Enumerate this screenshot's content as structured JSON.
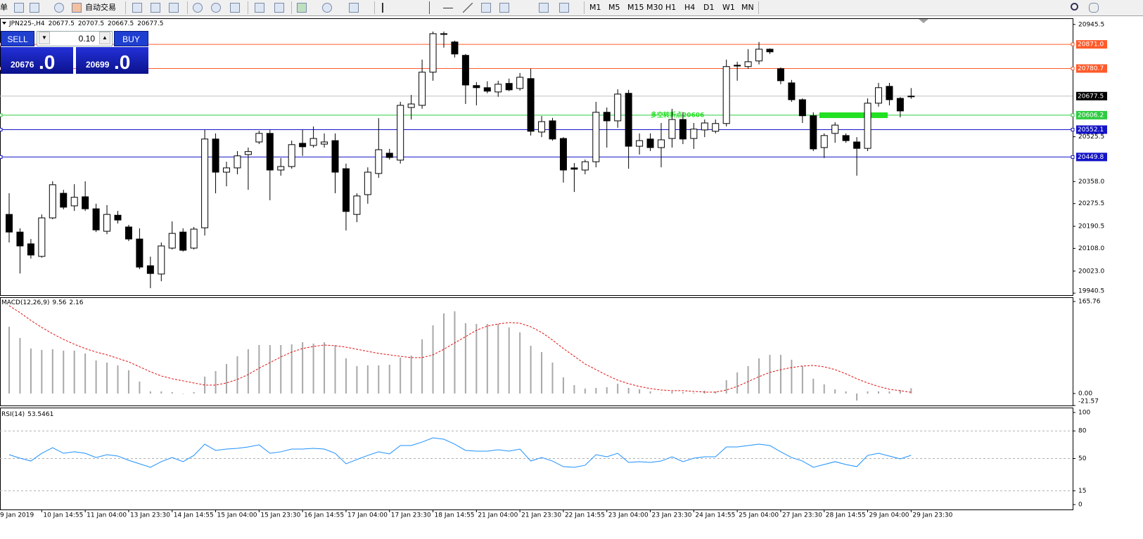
{
  "toolbar": {
    "items": [
      "单",
      "自动交易"
    ],
    "timeframes": [
      "M1",
      "M5",
      "M15",
      "M30",
      "H1",
      "H4",
      "D1",
      "W1",
      "MN"
    ]
  },
  "trade_panel": {
    "sell": "SELL",
    "lot": "0.10",
    "buy": "BUY",
    "bid_main": "20676",
    "bid_frac": ".0",
    "ask_main": "20699",
    "ask_frac": ".0"
  },
  "chart_data": [
    {
      "type": "candlestick",
      "symbol": "JPN225-,H4",
      "first_date_label": "9 Jan 2019",
      "categories": [
        null,
        null,
        null,
        "10 Jan 14:55",
        null,
        null,
        null,
        "11 Jan 04:00",
        null,
        null,
        null,
        "13 Jan 23:30",
        null,
        null,
        null,
        "14 Jan 14:55",
        null,
        null,
        null,
        "15 Jan 04:00",
        null,
        null,
        null,
        "15 Jan 23:30",
        null,
        null,
        null,
        "16 Jan 14:55",
        null,
        null,
        null,
        "17 Jan 04:00",
        null,
        null,
        null,
        "17 Jan 23:30",
        null,
        null,
        null,
        "18 Jan 14:55",
        null,
        null,
        null,
        "21 Jan 04:00",
        null,
        null,
        null,
        "21 Jan 23:30",
        null,
        null,
        null,
        "22 Jan 14:55",
        null,
        null,
        null,
        "23 Jan 04:00",
        null,
        null,
        null,
        "23 Jan 23:30",
        null,
        null,
        null,
        "24 Jan 14:55",
        null,
        null,
        null,
        "25 Jan 04:00",
        null,
        null,
        null,
        "27 Jan 23:30",
        null,
        null,
        null,
        "28 Jan 14:55",
        null,
        null,
        null,
        "29 Jan 04:00",
        null,
        null,
        null,
        "29 Jan 23:30"
      ],
      "open": [
        20235,
        20169,
        20125,
        20078,
        20222,
        20314,
        20267,
        20301,
        20256,
        20172,
        20232,
        20188,
        20143,
        20043,
        20012,
        20109,
        20169,
        20109,
        20185,
        20517,
        20393,
        20409,
        20459,
        20506,
        20538,
        20401,
        20414,
        20501,
        20493,
        20498,
        20511,
        20406,
        20235,
        20309,
        20388,
        20464,
        20438,
        20635,
        20643,
        20767,
        20909,
        20880,
        20830,
        20717,
        20709,
        20693,
        20725,
        20706,
        20743,
        20543,
        20585,
        20519,
        20409,
        20401,
        20432,
        20617,
        20585,
        20688,
        20490,
        20517,
        20485,
        20519,
        20590,
        20519,
        20551,
        20546,
        20575,
        20793,
        20788,
        20809,
        20853,
        20780,
        20727,
        20664,
        20604,
        20485,
        20538,
        20530,
        20506,
        20482,
        20651,
        20714,
        20669,
        20677.5
      ],
      "high": [
        20314,
        20183,
        20143,
        20235,
        20359,
        20327,
        20348,
        20359,
        20275,
        20270,
        20248,
        20196,
        20183,
        20077,
        20130,
        20209,
        20183,
        20188,
        20551,
        20538,
        20432,
        20472,
        20485,
        20548,
        20551,
        20446,
        20511,
        20551,
        20564,
        20538,
        20538,
        20425,
        20314,
        20411,
        20595,
        20480,
        20656,
        20682,
        20814,
        20919,
        20919,
        20885,
        20835,
        20730,
        20733,
        20735,
        20743,
        20764,
        20780,
        20603,
        20596,
        20524,
        20427,
        20440,
        20656,
        20635,
        20703,
        20701,
        20538,
        20538,
        20577,
        20630,
        20617,
        20577,
        20590,
        20590,
        20814,
        20806,
        20853,
        20880,
        20856,
        20785,
        20738,
        20669,
        20617,
        20538,
        20580,
        20538,
        20524,
        20669,
        20727,
        20727,
        20674,
        20707.5
      ],
      "low": [
        20130,
        20014,
        20070,
        20073,
        20217,
        20254,
        20248,
        20248,
        20169,
        20161,
        20201,
        20135,
        20030,
        19959,
        19985,
        20104,
        20096,
        20104,
        20156,
        20314,
        20340,
        20385,
        20327,
        20498,
        20288,
        20380,
        20406,
        20454,
        20485,
        20485,
        20314,
        20175,
        20206,
        20275,
        20372,
        20440,
        20425,
        20590,
        20630,
        20735,
        20859,
        20822,
        20648,
        20643,
        20688,
        20675,
        20696,
        20698,
        20530,
        20524,
        20511,
        20354,
        20319,
        20385,
        20411,
        20485,
        20559,
        20406,
        20459,
        20472,
        20411,
        20485,
        20498,
        20480,
        20524,
        20538,
        20564,
        20735,
        20780,
        20796,
        20835,
        20722,
        20656,
        20577,
        20472,
        20446,
        20503,
        20503,
        20380,
        20472,
        20638,
        20643,
        20598,
        20667.5
      ],
      "close": [
        20169,
        20117,
        20083,
        20222,
        20346,
        20262,
        20299,
        20256,
        20177,
        20235,
        20214,
        20143,
        20038,
        20014,
        20117,
        20164,
        20101,
        20180,
        20517,
        20393,
        20409,
        20454,
        20470,
        20538,
        20401,
        20414,
        20496,
        20488,
        20519,
        20506,
        20393,
        20246,
        20304,
        20393,
        20477,
        20448,
        20643,
        20648,
        20767,
        20911,
        20911,
        20835,
        20719,
        20709,
        20696,
        20722,
        20701,
        20748,
        20546,
        20582,
        20517,
        20401,
        20404,
        20432,
        20617,
        20585,
        20685,
        20490,
        20511,
        20485,
        20514,
        20590,
        20517,
        20554,
        20577,
        20575,
        20788,
        20790,
        20806,
        20853,
        20843,
        20735,
        20664,
        20604,
        20480,
        20530,
        20569,
        20511,
        20482,
        20651,
        20709,
        20664,
        20622,
        20677.5
      ],
      "up_color": "#ffffff",
      "down_color": "#000000",
      "last_price_color": "#c0c0c0",
      "ylim": [
        19933,
        20966
      ],
      "yticks": [
        20945.5,
        20525.5,
        {
          "value": 20358.0,
          "label": "20358.0"
        },
        20275.5,
        20190.5,
        {
          "value": 20108.0,
          "label": "20108.0"
        },
        {
          "value": 20023.0,
          "label": "20023.0"
        },
        19940.5
      ],
      "levels": [
        {
          "value": 20871,
          "label": "20871.0",
          "color": "#ff5a2a"
        },
        {
          "value": 20780.7,
          "color": "#ff5a2a"
        },
        {
          "value": 20606.2,
          "color": "#2ecc40"
        },
        {
          "value": 20552.1,
          "color": "#1414c8"
        },
        {
          "value": 20449.8,
          "color": "#1414c8"
        }
      ],
      "annotation": {
        "text": "多空转折点20606",
        "value": 20606,
        "color": "#22e022"
      }
    },
    {
      "type": "macd",
      "title": "MACD(12,26,9)",
      "histogram": [
        120.3,
        100,
        81,
        78.5,
        79.7,
        77.2,
        77.2,
        72.2,
        59.5,
        55.7,
        50.6,
        41.8,
        21.5,
        3.8,
        3.8,
        2.5,
        0,
        2.5,
        30.4,
        40.5,
        53.2,
        67.1,
        79.7,
        87.3,
        87.3,
        87.3,
        88.6,
        92.4,
        89.9,
        92.4,
        87.3,
        63.3,
        49.4,
        50.6,
        50.6,
        51.9,
        64.6,
        68.4,
        97.5,
        122.8,
        144.3,
        148.1,
        126.6,
        125.3,
        125.3,
        125.3,
        119,
        110.1,
        86.1,
        74.7,
        55.7,
        29.1,
        15.2,
        8.9,
        10.1,
        11.4,
        17.7,
        10.1,
        7.6,
        3.8,
        0.5,
        3.8,
        2.5,
        1.3,
        5.1,
        3.8,
        24.1,
        38,
        49.4,
        63.3,
        69.6,
        69.6,
        60.8,
        49.4,
        26.6,
        16.5,
        7.6,
        3.8,
        -12.7,
        3.8,
        3.8,
        3.8,
        6.3,
        9.56
      ],
      "signal": [
        158.2,
        145.6,
        131.6,
        119,
        107.6,
        97.5,
        88.6,
        81,
        74.7,
        69.6,
        63.3,
        57,
        48.1,
        39.2,
        31.6,
        26.6,
        22.8,
        19,
        15.2,
        15.2,
        19,
        25.3,
        34.2,
        45.6,
        55.7,
        65.8,
        74.7,
        81,
        84.8,
        87.3,
        86.1,
        83.5,
        79.7,
        75.9,
        72.2,
        69.6,
        67.1,
        64.6,
        64.6,
        69.6,
        79.7,
        91.1,
        102.5,
        113.9,
        121.5,
        125.3,
        127.8,
        126.6,
        120.3,
        110.1,
        96.2,
        81,
        67.1,
        53.2,
        43,
        32.9,
        24.1,
        17.7,
        12.7,
        8.9,
        6.3,
        5.1,
        5.1,
        3.8,
        2.5,
        2.5,
        6.3,
        12.7,
        21.5,
        30.4,
        38,
        43,
        46.8,
        49.4,
        50.6,
        48.1,
        43,
        35.4,
        26.6,
        19,
        12.7,
        7.6,
        5.1,
        2.16
      ],
      "histogram_color": "#a8a8a8",
      "signal_color": "#e01010",
      "ylim": [
        -21.57,
        165.76
      ],
      "yticks": [
        165.76,
        {
          "value": 0,
          "label": "0.00"
        },
        -21.57
      ]
    },
    {
      "type": "line",
      "title": "RSI(14)",
      "values": [
        54.2,
        50.4,
        47.3,
        55.7,
        61.8,
        55.7,
        57.3,
        55.7,
        51.1,
        54.2,
        52.7,
        48.1,
        44.3,
        40.5,
        46.6,
        51.1,
        46.6,
        53.4,
        65.6,
        58.8,
        60.3,
        61.1,
        62.6,
        64.9,
        55.7,
        57.3,
        60.3,
        60.3,
        61.1,
        60.3,
        55.7,
        44.3,
        48.9,
        53.4,
        57.3,
        55,
        64.1,
        64.1,
        67.9,
        72.5,
        71,
        65.6,
        58.8,
        58,
        58,
        59.5,
        58,
        60.3,
        47.3,
        51.1,
        47.3,
        41.2,
        40.5,
        42.7,
        54.2,
        51.9,
        55.7,
        45.8,
        46.6,
        45.8,
        47.3,
        51.9,
        46.6,
        50.4,
        51.9,
        51.9,
        62.6,
        62.6,
        64.1,
        65.6,
        64.1,
        57.3,
        51.1,
        47.3,
        40.5,
        43.5,
        46.6,
        43.5,
        41.2,
        53.4,
        55.7,
        52.7,
        49.6,
        53.5461
      ],
      "color": "#1e90ff",
      "ylim": [
        0,
        100
      ],
      "yticks": [
        100,
        80,
        50,
        15,
        0
      ]
    }
  ]
}
